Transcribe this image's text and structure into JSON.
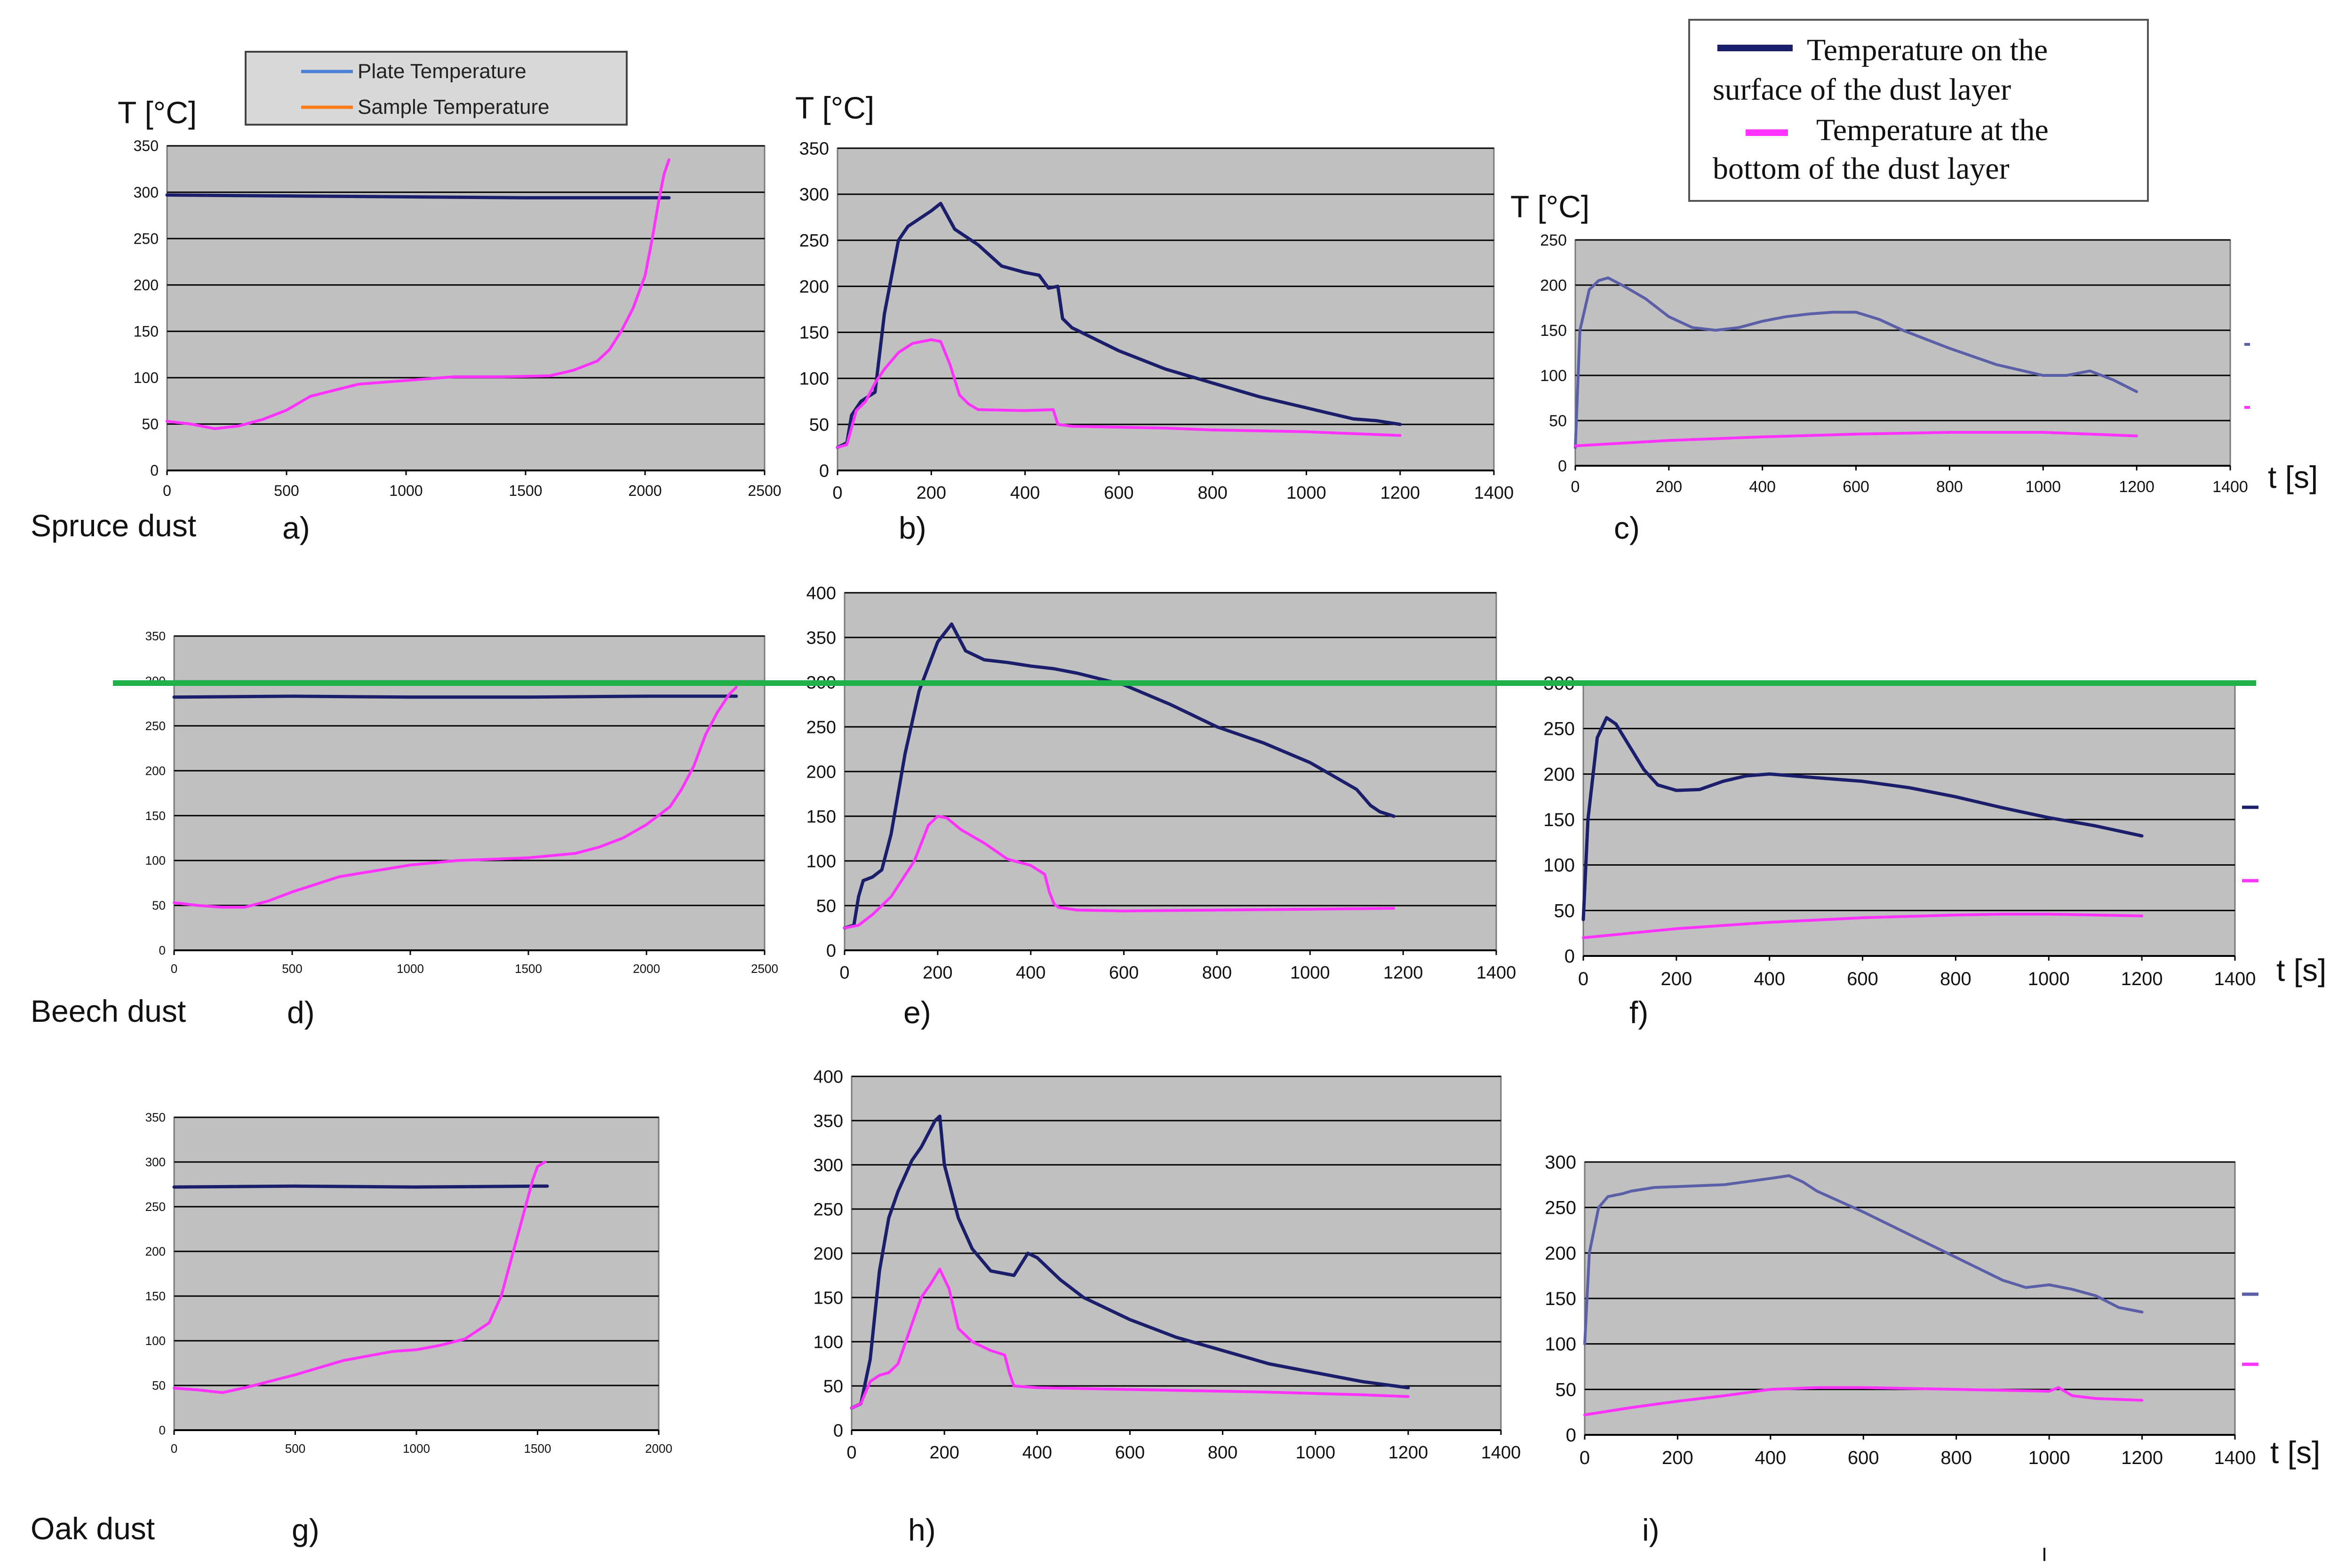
{
  "figure": {
    "row_labels": [
      "Spruce dust",
      "Beech dust",
      "Oak dust"
    ],
    "y_unit_label": "T [°C]",
    "x_unit_label": "t [s]",
    "legend_a": {
      "items": [
        {
          "label": "Plate Temperature",
          "color": "#4a7fd6"
        },
        {
          "label": "Sample Temperature",
          "color": "#ff7a1a"
        }
      ]
    },
    "legend_b": {
      "lines": [
        {
          "text": "Temperature on the",
          "swatch": "#1b1f6b"
        },
        {
          "text": "surface of the dust layer",
          "swatch": null
        },
        {
          "text": "Temperature at the",
          "swatch": "#ff33ff"
        },
        {
          "text": "bottom of the dust layer",
          "swatch": null
        }
      ]
    },
    "colors": {
      "plot_bg": "#c0c0c0",
      "grid": "#000000",
      "surface_line": "#1b1f6b",
      "bottom_line": "#ff33ff",
      "light_surface_line": "#5b5fa8",
      "marker_line": "#22b04a"
    }
  },
  "chart_data": [
    {
      "id": "a",
      "panel_label": "a)",
      "type": "line",
      "title": "",
      "xlabel": "",
      "ylabel": "T [°C]",
      "xlim": [
        0,
        2500
      ],
      "ylim": [
        0,
        350
      ],
      "xticks": [
        0,
        500,
        1000,
        1500,
        2000,
        2500
      ],
      "yticks": [
        0,
        50,
        100,
        150,
        200,
        250,
        300,
        350
      ],
      "series": [
        {
          "name": "Plate Temperature",
          "role": "surface",
          "x": [
            0,
            500,
            1000,
            1500,
            2000,
            2100
          ],
          "y": [
            297,
            296,
            295,
            294,
            294,
            294
          ]
        },
        {
          "name": "Sample Temperature",
          "role": "bottom",
          "x": [
            0,
            100,
            200,
            300,
            400,
            500,
            600,
            800,
            1000,
            1200,
            1400,
            1600,
            1700,
            1800,
            1850,
            1900,
            1950,
            2000,
            2030,
            2060,
            2080,
            2100
          ],
          "y": [
            53,
            50,
            45,
            48,
            55,
            65,
            80,
            93,
            97,
            101,
            101,
            102,
            108,
            118,
            130,
            150,
            175,
            210,
            250,
            295,
            320,
            335
          ]
        }
      ]
    },
    {
      "id": "b",
      "panel_label": "b)",
      "type": "line",
      "title": "",
      "xlabel": "",
      "ylabel": "T [°C]",
      "xlim": [
        0,
        1400
      ],
      "ylim": [
        0,
        350
      ],
      "xticks": [
        0,
        200,
        400,
        600,
        800,
        1000,
        1200,
        1400
      ],
      "yticks": [
        0,
        50,
        100,
        150,
        200,
        250,
        300,
        350
      ],
      "series": [
        {
          "name": "Temperature on the surface of the dust layer",
          "role": "surface",
          "x": [
            0,
            20,
            30,
            50,
            80,
            100,
            130,
            150,
            200,
            220,
            250,
            300,
            350,
            400,
            430,
            450,
            470,
            480,
            500,
            600,
            700,
            800,
            900,
            1000,
            1100,
            1150,
            1200
          ],
          "y": [
            25,
            30,
            60,
            75,
            85,
            170,
            250,
            265,
            282,
            290,
            262,
            245,
            222,
            215,
            212,
            198,
            200,
            165,
            155,
            130,
            110,
            95,
            80,
            68,
            56,
            54,
            50
          ]
        },
        {
          "name": "Temperature at the bottom of the dust layer",
          "role": "bottom",
          "x": [
            0,
            20,
            40,
            60,
            80,
            100,
            130,
            160,
            200,
            220,
            240,
            260,
            280,
            300,
            400,
            460,
            470,
            500,
            600,
            700,
            800,
            900,
            1000,
            1100,
            1200
          ],
          "y": [
            25,
            28,
            65,
            75,
            95,
            110,
            128,
            138,
            142,
            140,
            115,
            82,
            72,
            66,
            65,
            66,
            50,
            48,
            47,
            46,
            44,
            43,
            42,
            40,
            38
          ]
        }
      ]
    },
    {
      "id": "c",
      "panel_label": "c)",
      "type": "line",
      "title": "",
      "xlabel": "t [s]",
      "ylabel": "T [°C]",
      "xlim": [
        0,
        1400
      ],
      "ylim": [
        0,
        250
      ],
      "xticks": [
        0,
        200,
        400,
        600,
        800,
        1000,
        1200,
        1400
      ],
      "yticks": [
        0,
        50,
        100,
        150,
        200,
        250
      ],
      "series": [
        {
          "name": "Temperature on the surface of the dust layer",
          "role": "surface_light",
          "x": [
            0,
            10,
            30,
            50,
            70,
            100,
            150,
            200,
            250,
            300,
            350,
            400,
            450,
            500,
            550,
            600,
            650,
            700,
            800,
            900,
            1000,
            1050,
            1100,
            1150,
            1200
          ],
          "y": [
            20,
            150,
            195,
            205,
            208,
            200,
            185,
            165,
            153,
            150,
            153,
            160,
            165,
            168,
            170,
            170,
            162,
            150,
            130,
            112,
            100,
            100,
            105,
            95,
            82
          ]
        },
        {
          "name": "Temperature at the bottom of the dust layer",
          "role": "bottom",
          "x": [
            0,
            100,
            200,
            400,
            600,
            800,
            1000,
            1100,
            1200
          ],
          "y": [
            22,
            25,
            28,
            32,
            35,
            37,
            37,
            35,
            33
          ]
        }
      ]
    },
    {
      "id": "d",
      "panel_label": "d)",
      "type": "line",
      "title": "",
      "xlabel": "",
      "ylabel": "",
      "xlim": [
        0,
        2500
      ],
      "ylim": [
        0,
        350
      ],
      "xticks": [
        0,
        500,
        1000,
        1500,
        2000,
        2500
      ],
      "yticks": [
        0,
        50,
        100,
        150,
        200,
        250,
        300,
        350
      ],
      "series": [
        {
          "name": "Plate Temperature",
          "role": "surface",
          "x": [
            0,
            500,
            1000,
            1500,
            2000,
            2380
          ],
          "y": [
            282,
            283,
            282,
            282,
            283,
            283
          ]
        },
        {
          "name": "Sample Temperature",
          "role": "bottom",
          "x": [
            0,
            100,
            200,
            300,
            400,
            500,
            700,
            1000,
            1200,
            1500,
            1700,
            1800,
            1900,
            2000,
            2100,
            2150,
            2200,
            2250,
            2300,
            2350,
            2380
          ],
          "y": [
            53,
            50,
            48,
            48,
            55,
            65,
            82,
            95,
            100,
            103,
            108,
            115,
            125,
            140,
            160,
            180,
            205,
            240,
            265,
            285,
            293
          ]
        }
      ]
    },
    {
      "id": "e",
      "panel_label": "e)",
      "type": "line",
      "title": "",
      "xlabel": "",
      "ylabel": "",
      "xlim": [
        0,
        1400
      ],
      "ylim": [
        0,
        400
      ],
      "xticks": [
        0,
        200,
        400,
        600,
        800,
        1000,
        1200,
        1400
      ],
      "yticks": [
        0,
        50,
        100,
        150,
        200,
        250,
        300,
        350,
        400
      ],
      "series": [
        {
          "name": "Temperature on the surface of the dust layer",
          "role": "surface",
          "x": [
            0,
            20,
            30,
            40,
            60,
            80,
            100,
            130,
            160,
            200,
            230,
            260,
            300,
            350,
            400,
            450,
            500,
            600,
            700,
            800,
            900,
            1000,
            1050,
            1100,
            1130,
            1150,
            1180
          ],
          "y": [
            25,
            28,
            60,
            78,
            82,
            90,
            130,
            220,
            290,
            345,
            365,
            335,
            325,
            322,
            318,
            315,
            310,
            297,
            275,
            250,
            232,
            210,
            195,
            180,
            162,
            155,
            150
          ]
        },
        {
          "name": "Temperature at the bottom of the dust layer",
          "role": "bottom",
          "x": [
            0,
            30,
            60,
            100,
            150,
            180,
            200,
            220,
            250,
            300,
            350,
            400,
            430,
            440,
            450,
            460,
            500,
            600,
            800,
            1000,
            1180
          ],
          "y": [
            25,
            28,
            40,
            60,
            100,
            140,
            150,
            148,
            135,
            120,
            102,
            95,
            85,
            65,
            52,
            48,
            45,
            44,
            45,
            46,
            47
          ]
        }
      ]
    },
    {
      "id": "f",
      "panel_label": "f)",
      "type": "line",
      "title": "",
      "xlabel": "t [s]",
      "ylabel": "",
      "xlim": [
        0,
        1400
      ],
      "ylim": [
        0,
        300
      ],
      "xticks": [
        0,
        200,
        400,
        600,
        800,
        1000,
        1200,
        1400
      ],
      "yticks": [
        0,
        50,
        100,
        150,
        200,
        250,
        300
      ],
      "series": [
        {
          "name": "Temperature on the surface of the dust layer",
          "role": "surface",
          "x": [
            0,
            10,
            30,
            50,
            70,
            100,
            130,
            160,
            200,
            250,
            300,
            350,
            400,
            500,
            600,
            700,
            800,
            900,
            1000,
            1100,
            1200
          ],
          "y": [
            40,
            150,
            240,
            262,
            255,
            230,
            205,
            188,
            182,
            183,
            192,
            198,
            200,
            196,
            192,
            185,
            175,
            163,
            152,
            143,
            132
          ]
        },
        {
          "name": "Temperature at the bottom of the dust layer",
          "role": "bottom",
          "x": [
            0,
            100,
            200,
            400,
            600,
            800,
            900,
            1000,
            1200
          ],
          "y": [
            20,
            25,
            30,
            37,
            42,
            45,
            46,
            46,
            44
          ]
        }
      ]
    },
    {
      "id": "g",
      "panel_label": "g)",
      "type": "line",
      "title": "",
      "xlabel": "",
      "ylabel": "",
      "xlim": [
        0,
        2000
      ],
      "ylim": [
        0,
        350
      ],
      "xticks": [
        0,
        500,
        1000,
        1500,
        2000
      ],
      "yticks": [
        0,
        50,
        100,
        150,
        200,
        250,
        300,
        350
      ],
      "series": [
        {
          "name": "Plate Temperature",
          "role": "surface",
          "x": [
            0,
            500,
            1000,
            1500,
            1540
          ],
          "y": [
            272,
            273,
            272,
            273,
            273
          ]
        },
        {
          "name": "Sample Temperature",
          "role": "bottom",
          "x": [
            0,
            100,
            200,
            300,
            400,
            500,
            700,
            900,
            1000,
            1100,
            1200,
            1300,
            1350,
            1400,
            1450,
            1480,
            1500,
            1530
          ],
          "y": [
            47,
            45,
            42,
            48,
            55,
            62,
            78,
            88,
            90,
            95,
            102,
            120,
            150,
            200,
            250,
            280,
            295,
            300
          ]
        }
      ]
    },
    {
      "id": "h",
      "panel_label": "h)",
      "type": "line",
      "title": "",
      "xlabel": "",
      "ylabel": "",
      "xlim": [
        0,
        1400
      ],
      "ylim": [
        0,
        400
      ],
      "xticks": [
        0,
        200,
        400,
        600,
        800,
        1000,
        1200,
        1400
      ],
      "yticks": [
        0,
        50,
        100,
        150,
        200,
        250,
        300,
        350,
        400
      ],
      "series": [
        {
          "name": "Temperature on the surface of the dust layer",
          "role": "surface",
          "x": [
            0,
            20,
            40,
            60,
            80,
            100,
            130,
            150,
            180,
            190,
            200,
            230,
            260,
            300,
            350,
            380,
            400,
            450,
            500,
            600,
            700,
            800,
            900,
            1000,
            1100,
            1200
          ],
          "y": [
            25,
            30,
            80,
            180,
            240,
            270,
            305,
            320,
            350,
            355,
            300,
            240,
            205,
            180,
            175,
            200,
            195,
            170,
            150,
            125,
            105,
            90,
            75,
            65,
            55,
            48
          ]
        },
        {
          "name": "Temperature at the bottom of the dust layer",
          "role": "bottom",
          "x": [
            0,
            20,
            40,
            60,
            80,
            100,
            130,
            150,
            170,
            190,
            210,
            230,
            260,
            300,
            330,
            340,
            350,
            400,
            500,
            700,
            900,
            1100,
            1200
          ],
          "y": [
            25,
            30,
            55,
            62,
            65,
            75,
            120,
            150,
            165,
            182,
            160,
            115,
            100,
            90,
            85,
            65,
            50,
            48,
            47,
            45,
            43,
            40,
            38
          ]
        }
      ]
    },
    {
      "id": "i",
      "panel_label": "i)",
      "type": "line",
      "title": "",
      "xlabel": "t [s]",
      "ylabel": "",
      "xlim": [
        0,
        1400
      ],
      "ylim": [
        0,
        300
      ],
      "xticks": [
        0,
        200,
        400,
        600,
        800,
        1000,
        1200,
        1400
      ],
      "yticks": [
        0,
        50,
        100,
        150,
        200,
        250,
        300
      ],
      "series": [
        {
          "name": "Temperature on the surface of the dust layer",
          "role": "surface_light",
          "x": [
            0,
            10,
            30,
            50,
            80,
            100,
            150,
            200,
            300,
            400,
            440,
            470,
            500,
            600,
            700,
            800,
            900,
            950,
            1000,
            1050,
            1100,
            1150,
            1200
          ],
          "y": [
            100,
            200,
            250,
            262,
            265,
            268,
            272,
            273,
            275,
            282,
            285,
            278,
            268,
            245,
            220,
            195,
            170,
            162,
            165,
            160,
            153,
            140,
            135
          ]
        },
        {
          "name": "Temperature at the bottom of the dust layer",
          "role": "bottom",
          "x": [
            0,
            100,
            200,
            300,
            400,
            500,
            600,
            800,
            1000,
            1020,
            1050,
            1100,
            1200
          ],
          "y": [
            22,
            30,
            37,
            43,
            50,
            52,
            52,
            50,
            48,
            52,
            43,
            40,
            38
          ]
        }
      ]
    }
  ]
}
